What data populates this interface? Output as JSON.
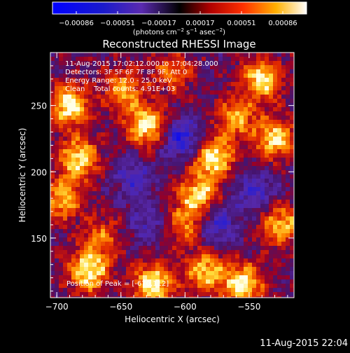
{
  "colorbar": {
    "ticks": [
      "−0.00086",
      "−0.00051",
      "−0.00017",
      "0.00017",
      "0.00051",
      "0.00086"
    ],
    "unit_text": "(photons cm",
    "unit_sup1": "−2",
    "unit_mid": " s",
    "unit_sup2": "−1",
    "unit_tail": " asec",
    "unit_sup3": "−2",
    "unit_close": ")"
  },
  "chart_data": {
    "type": "heatmap",
    "title": "Reconstructed RHESSI Image",
    "xlabel": "Heliocentric X (arcsec)",
    "ylabel": "Heliocentric Y (arcsec)",
    "xlim": [
      -705,
      -515
    ],
    "ylim": [
      105,
      290
    ],
    "x_ticks": [
      -700,
      -650,
      -600,
      -550
    ],
    "x_tick_labels": [
      "−700",
      "−650",
      "−600",
      "−550"
    ],
    "y_ticks": [
      150,
      200,
      250
    ],
    "y_tick_labels": [
      "150",
      "200",
      "250"
    ],
    "colorscale_range": [
      -0.00086,
      0.00086
    ],
    "annotations": [
      "11-Aug-2015 17:02:12.000 to 17:04:28.000",
      "Detectors: 3F 5F 6F 7F 8F 9F, Att 0",
      "Energy Range: 12.0 - 25.0 keV",
      "Clean    Total counts: 4.91E+03"
    ],
    "peak_label": "Position of Peak = [-670,112]",
    "hotspots": [
      {
        "x": -690,
        "y": 250,
        "v": 1.0
      },
      {
        "x": -683,
        "y": 210,
        "v": 0.9
      },
      {
        "x": -695,
        "y": 180,
        "v": 0.8
      },
      {
        "x": -675,
        "y": 125,
        "v": 1.0
      },
      {
        "x": -630,
        "y": 235,
        "v": 0.95
      },
      {
        "x": -648,
        "y": 262,
        "v": 0.7
      },
      {
        "x": -625,
        "y": 115,
        "v": 1.0
      },
      {
        "x": -600,
        "y": 160,
        "v": 0.6
      },
      {
        "x": -585,
        "y": 125,
        "v": 0.8
      },
      {
        "x": -578,
        "y": 210,
        "v": 1.0
      },
      {
        "x": -590,
        "y": 182,
        "v": 0.85
      },
      {
        "x": -560,
        "y": 240,
        "v": 0.7
      },
      {
        "x": -555,
        "y": 115,
        "v": 1.0
      },
      {
        "x": -540,
        "y": 270,
        "v": 0.9
      },
      {
        "x": -530,
        "y": 225,
        "v": 0.85
      },
      {
        "x": -525,
        "y": 160,
        "v": 0.8
      },
      {
        "x": -665,
        "y": 150,
        "v": 0.55
      },
      {
        "x": -610,
        "y": 275,
        "v": 0.55
      }
    ],
    "coldspots": [
      {
        "x": -602,
        "y": 225,
        "v": -0.7
      },
      {
        "x": -640,
        "y": 195,
        "v": -0.4
      },
      {
        "x": -575,
        "y": 160,
        "v": -0.55
      },
      {
        "x": -545,
        "y": 185,
        "v": -0.5
      },
      {
        "x": -630,
        "y": 160,
        "v": -0.35
      }
    ]
  },
  "footer": {
    "datetime": "11-Aug-2015 22:04"
  }
}
